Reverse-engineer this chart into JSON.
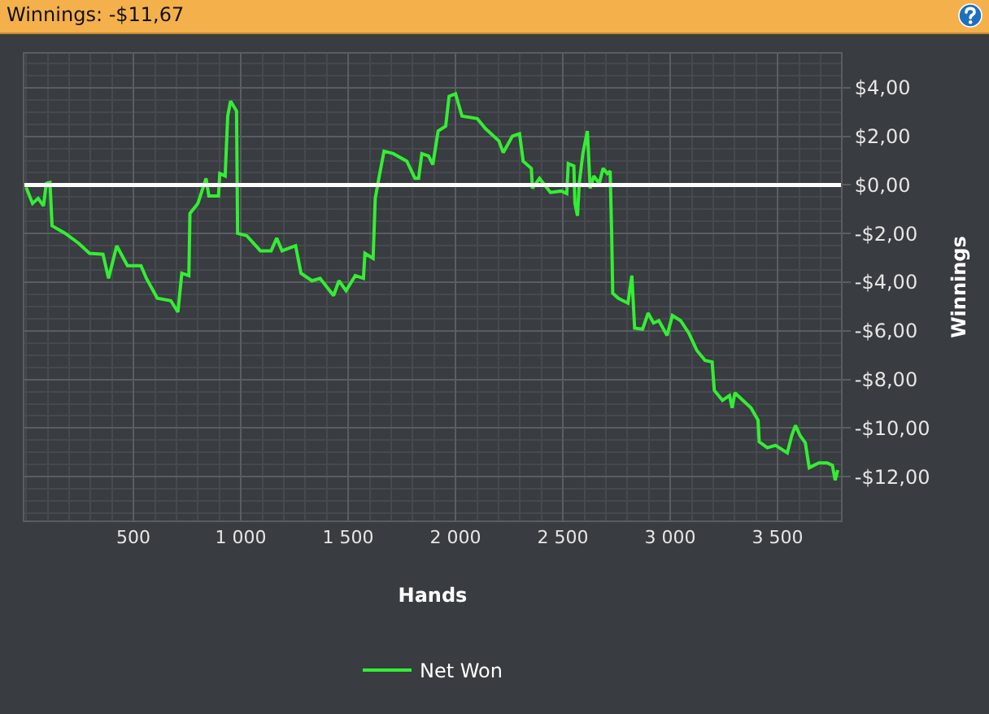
{
  "chart_data": {
    "type": "line",
    "title": "Winnings: -$11,67",
    "xlabel": "Hands",
    "ylabel": "Winnings",
    "x": [
      0,
      30,
      56,
      81,
      94,
      111,
      121,
      182,
      245,
      295,
      358,
      384,
      422,
      472,
      535,
      560,
      611,
      674,
      707,
      725,
      758,
      763,
      800,
      838,
      851,
      896,
      902,
      927,
      939,
      952,
      980,
      985,
      1028,
      1091,
      1141,
      1167,
      1192,
      1255,
      1280,
      1331,
      1369,
      1432,
      1457,
      1490,
      1533,
      1571,
      1578,
      1616,
      1626,
      1647,
      1667,
      1710,
      1773,
      1811,
      1828,
      1843,
      1874,
      1894,
      1919,
      1954,
      1970,
      2000,
      2030,
      2101,
      2139,
      2202,
      2222,
      2265,
      2298,
      2315,
      2353,
      2358,
      2391,
      2442,
      2492,
      2518,
      2525,
      2551,
      2556,
      2568,
      2576,
      2593,
      2614,
      2627,
      2644,
      2669,
      2687,
      2707,
      2720,
      2727,
      2732,
      2758,
      2803,
      2821,
      2834,
      2871,
      2897,
      2922,
      2947,
      2985,
      3010,
      3048,
      3086,
      3124,
      3162,
      3195,
      3205,
      3243,
      3276,
      3288,
      3301,
      3338,
      3376,
      3409,
      3414,
      3452,
      3490,
      3545,
      3566,
      3583,
      3604,
      3629,
      3647,
      3692,
      3730,
      3755,
      3768,
      3780
    ],
    "series": [
      {
        "name": "Net Won",
        "color": "#33ee33",
        "values": [
          -0.1,
          -0.76,
          -0.55,
          -0.86,
          0.06,
          0.1,
          -1.68,
          -1.99,
          -2.4,
          -2.81,
          -2.85,
          -3.84,
          -2.5,
          -3.32,
          -3.32,
          -3.84,
          -4.66,
          -4.76,
          -5.23,
          -3.63,
          -3.73,
          -1.17,
          -0.76,
          0.27,
          -0.45,
          -0.45,
          0.47,
          0.37,
          2.83,
          3.45,
          3.04,
          -1.99,
          -2.09,
          -2.71,
          -2.71,
          -2.19,
          -2.71,
          -2.5,
          -3.63,
          -3.94,
          -3.84,
          -4.55,
          -3.94,
          -4.35,
          -3.73,
          -3.84,
          -2.81,
          -3.02,
          -0.55,
          0.47,
          1.39,
          1.29,
          0.98,
          0.27,
          0.27,
          1.29,
          1.19,
          0.84,
          2.22,
          2.42,
          3.65,
          3.75,
          2.83,
          2.73,
          2.32,
          1.81,
          1.33,
          2.01,
          2.11,
          0.98,
          0.68,
          -0.14,
          0.27,
          -0.31,
          -0.25,
          -0.35,
          0.88,
          0.78,
          -0.76,
          -1.27,
          0.06,
          1.29,
          2.22,
          -0.14,
          0.37,
          0.06,
          0.68,
          0.47,
          0.57,
          -1.99,
          -4.45,
          -4.66,
          -4.86,
          -3.73,
          -5.89,
          -5.93,
          -5.27,
          -5.68,
          -5.58,
          -6.19,
          -5.37,
          -5.58,
          -6.09,
          -6.81,
          -7.22,
          -7.28,
          -8.45,
          -8.86,
          -8.66,
          -9.17,
          -8.55,
          -8.86,
          -9.17,
          -9.68,
          -10.56,
          -10.81,
          -10.71,
          -11.02,
          -10.3,
          -9.89,
          -10.3,
          -10.61,
          -11.63,
          -11.43,
          -11.43,
          -11.53,
          -12.14,
          -11.73
        ]
      }
    ],
    "xlim": [
      -8,
      3795
    ],
    "xticks": [
      {
        "value": 500,
        "label": "500"
      },
      {
        "value": 1000,
        "label": "1 000"
      },
      {
        "value": 1500,
        "label": "1 500"
      },
      {
        "value": 2000,
        "label": "2 000"
      },
      {
        "value": 2500,
        "label": "2 500"
      },
      {
        "value": 3000,
        "label": "3 000"
      },
      {
        "value": 3500,
        "label": "3 500"
      }
    ],
    "ylim": [
      -13.8,
      5.4
    ],
    "yticks": [
      {
        "value": 4,
        "label": "$4,00"
      },
      {
        "value": 2,
        "label": "$2,00"
      },
      {
        "value": 0,
        "label": "$0,00"
      },
      {
        "value": -2,
        "label": "-$2,00"
      },
      {
        "value": -4,
        "label": "-$4,00"
      },
      {
        "value": -6,
        "label": "-$6,00"
      },
      {
        "value": -8,
        "label": "-$8,00"
      },
      {
        "value": -10,
        "label": "-$10,00"
      },
      {
        "value": -12,
        "label": "-$12,00"
      }
    ],
    "ref_lines": [
      {
        "axis": "y",
        "value": 0,
        "color": "#ffffff"
      }
    ],
    "grid": true,
    "legend": "bottom",
    "marker": "none",
    "line_style": "solid"
  }
}
